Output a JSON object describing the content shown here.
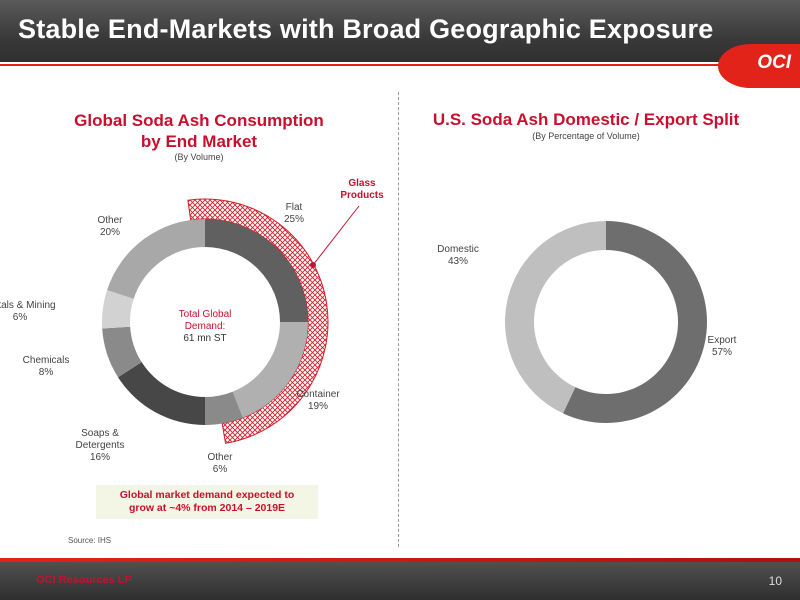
{
  "header": {
    "title": "Stable End-Markets with Broad Geographic Exposure",
    "logo": "OCI"
  },
  "left": {
    "title_line1": "Global Soda Ash Consumption",
    "title_line2": "by End Market",
    "subtitle": "(By Volume)",
    "center_line1": "Total Global",
    "center_line2": "Demand:",
    "center_line3": "61 mn ST",
    "glass_line1": "Glass",
    "glass_line2": "Products",
    "callout_line1": "Global market demand expected to",
    "callout_line2": "grow at ~4% from 2014 – 2019E",
    "source": "Source: IHS"
  },
  "right": {
    "title": "U.S. Soda Ash Domestic / Export Split",
    "subtitle": "(By Percentage of Volume)"
  },
  "footer": {
    "company": "OCI Resources LP",
    "page": "10"
  },
  "colors": {
    "accent": "#c8102e",
    "logo_red": "#e2231a"
  },
  "chart_data": [
    {
      "type": "pie",
      "title": "Global Soda Ash Consumption by End Market",
      "subtitle": "(By Volume)",
      "categories": [
        "Flat",
        "Container",
        "Other",
        "Soaps & Detergents",
        "Chemicals",
        "Metals & Mining",
        "Other"
      ],
      "values": [
        25,
        19,
        6,
        16,
        8,
        6,
        20
      ],
      "value_labels": [
        "25%",
        "19%",
        "6%",
        "16%",
        "8%",
        "6%",
        "20%"
      ],
      "colors": [
        "#606060",
        "#b0b0b0",
        "#8a8a8a",
        "#474747",
        "#8a8a8a",
        "#d2d2d2",
        "#a8a8a8"
      ],
      "highlight_group": {
        "label": "Glass Products",
        "categories": [
          "Flat",
          "Container"
        ]
      }
    },
    {
      "type": "pie",
      "title": "U.S. Soda Ash Domestic / Export Split",
      "subtitle": "(By Percentage of Volume)",
      "categories": [
        "Export",
        "Domestic"
      ],
      "values": [
        57,
        43
      ],
      "value_labels": [
        "57%",
        "43%"
      ],
      "colors": [
        "#6e6e6e",
        "#bfbfbf"
      ]
    }
  ]
}
